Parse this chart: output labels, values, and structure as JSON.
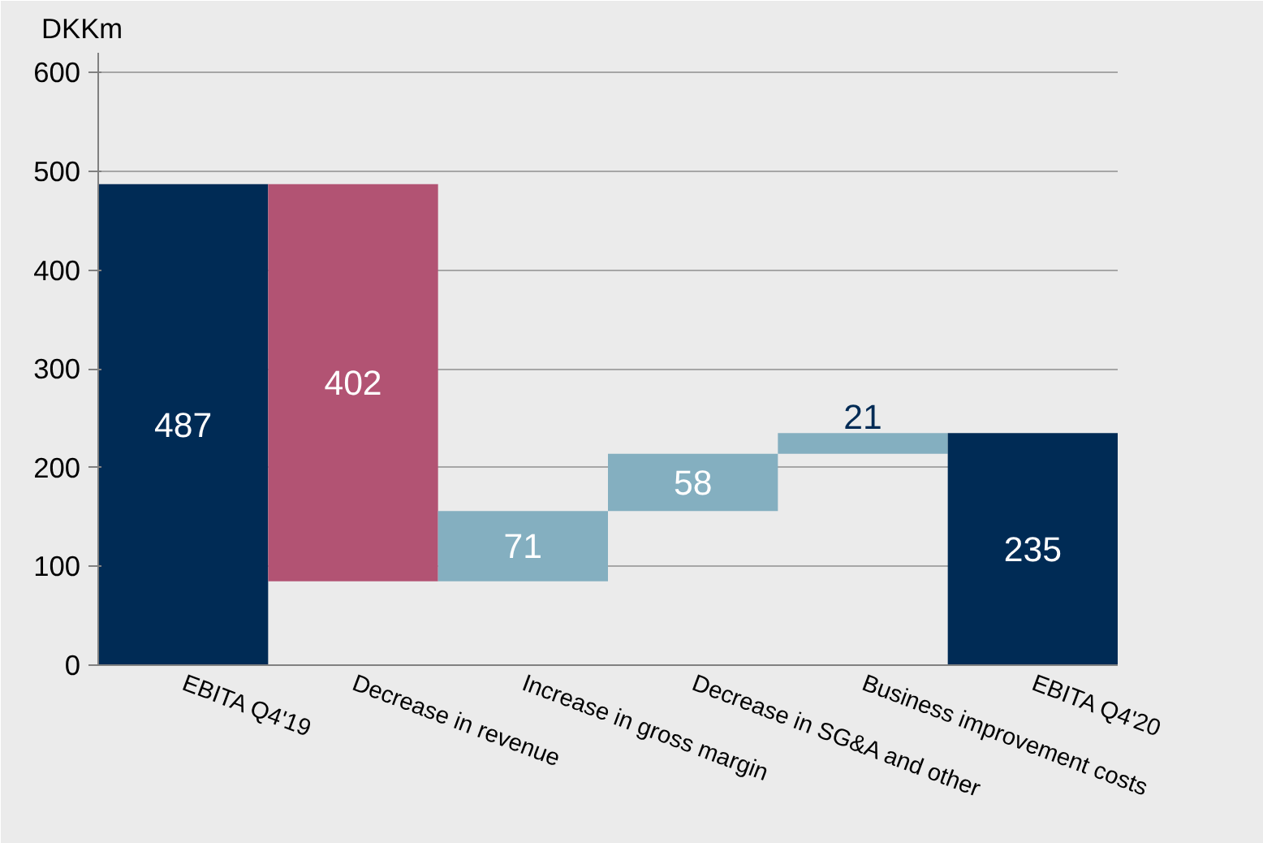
{
  "chart_data": {
    "type": "bar",
    "ylabel": "DKKm",
    "categories": [
      "EBITA Q4'19",
      "Decrease in revenue",
      "Increase in gross margin",
      "Decrease in SG&A and other",
      "Business improvement costs",
      "EBITA Q4'20"
    ],
    "values": [
      487,
      402,
      71,
      58,
      21,
      235
    ],
    "base": [
      0,
      85,
      85,
      156,
      214,
      0
    ],
    "colors": [
      "#002b55",
      "#b25373",
      "#84afc0",
      "#84afc0",
      "#84afc0",
      "#002b55"
    ],
    "ylim": [
      0,
      620
    ],
    "yticks": [
      0,
      100,
      200,
      300,
      400,
      500,
      600
    ],
    "grid": "y",
    "data_labels": true
  }
}
